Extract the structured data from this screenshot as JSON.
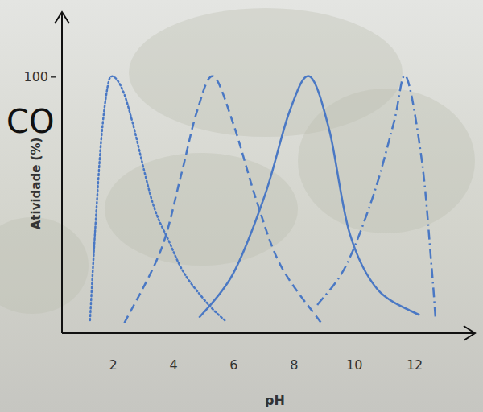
{
  "chart_data": {
    "type": "line",
    "x_label": "pH",
    "y_label": "Atividade (%)",
    "annotation": "CO",
    "xlim": [
      0.3,
      14
    ],
    "xticks": [
      2,
      4,
      6,
      8,
      10,
      12
    ],
    "ylim": [
      0,
      125
    ],
    "yticks": [
      100
    ],
    "grid": false,
    "series": [
      {
        "color": "#4a78c4",
        "line_style": "dotted",
        "x": [
          1.23,
          1.4,
          1.6,
          1.8,
          1.97,
          2.3,
          2.64,
          3.3,
          3.84,
          4.37,
          5.17,
          5.7
        ],
        "values": [
          5,
          40,
          75,
          95,
          100,
          95,
          82,
          51,
          36,
          23,
          11,
          5
        ]
      },
      {
        "color": "#4a78c4",
        "line_style": "dashed",
        "x": [
          2.37,
          3.57,
          4.24,
          4.77,
          5.31,
          5.97,
          6.77,
          7.57,
          8.9
        ],
        "values": [
          4,
          32,
          61,
          86,
          100,
          82,
          51,
          26,
          4
        ]
      },
      {
        "color": "#4a78c4",
        "line_style": "solid",
        "x": [
          4.85,
          5.97,
          7.04,
          7.84,
          8.51,
          9.17,
          9.84,
          10.77,
          12.16
        ],
        "values": [
          6,
          23,
          54,
          86,
          100,
          79,
          39,
          17,
          7
        ]
      },
      {
        "color": "#4a78c4",
        "line_style": "dashdot",
        "x": [
          8.77,
          9.71,
          10.64,
          11.31,
          11.71,
          12.24,
          12.56,
          12.69
        ],
        "values": [
          11,
          26,
          54,
          82,
          100,
          67,
          26,
          6
        ]
      }
    ]
  }
}
